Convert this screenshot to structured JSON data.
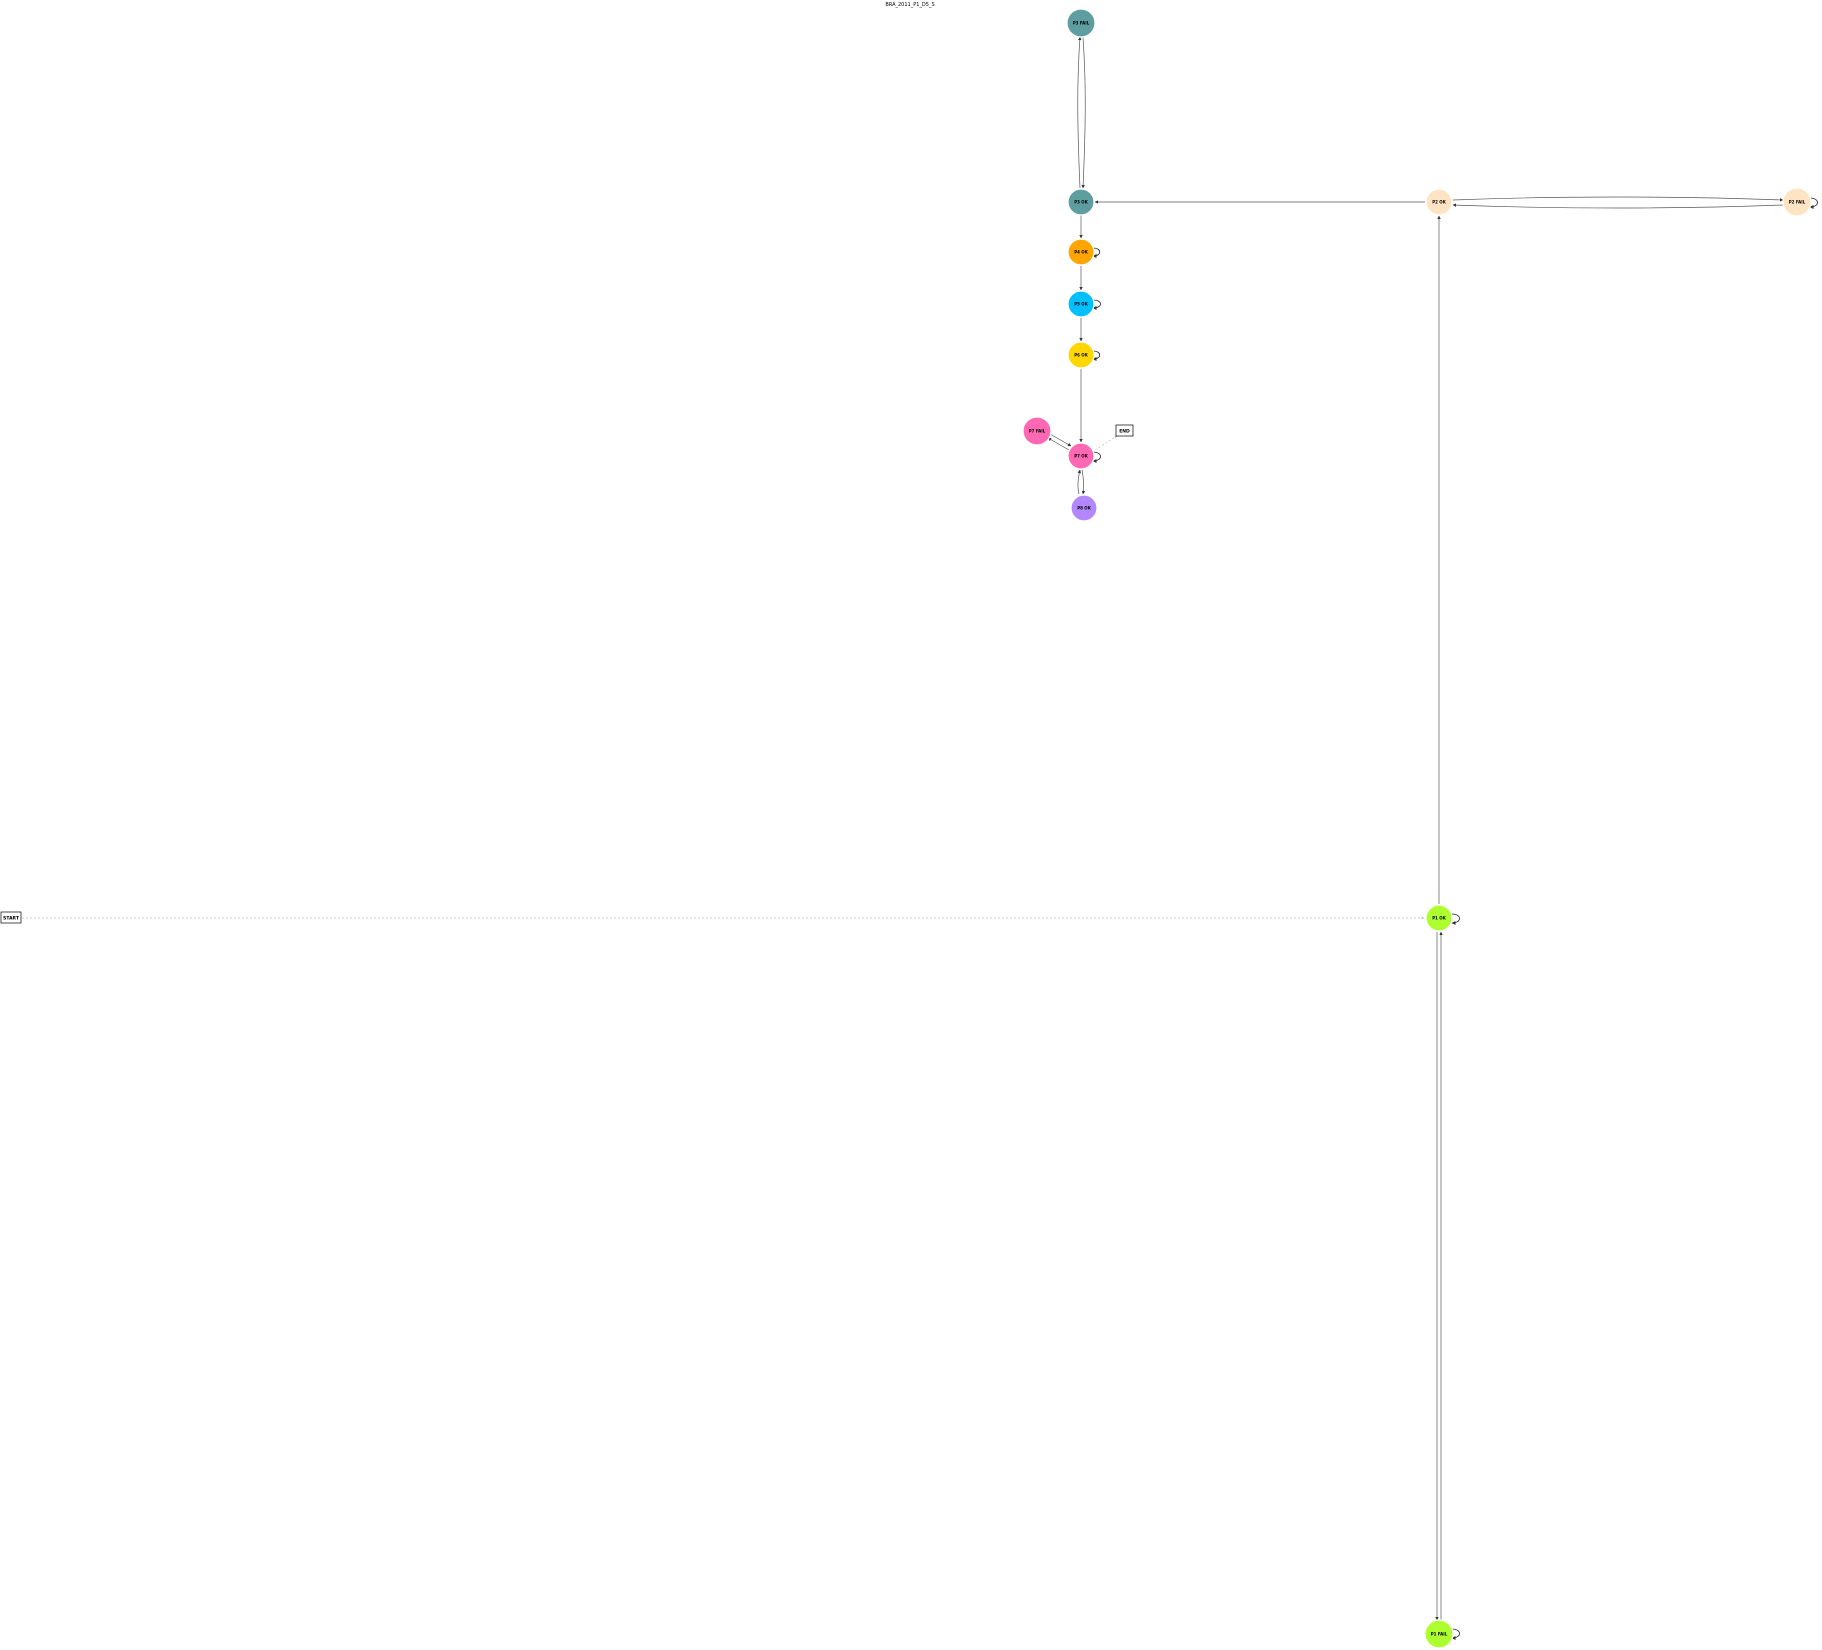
{
  "title": "BRA_2011_P1_D5_S",
  "start_label": "START",
  "end_label": "END",
  "nodes": [
    {
      "id": "p3_fail",
      "label": "P3 FAIL",
      "color": "#5f9ea0"
    },
    {
      "id": "p3_ok",
      "label": "P3 OK",
      "color": "#5f9ea0"
    },
    {
      "id": "p2_ok",
      "label": "P2 OK",
      "color": "#ffe4c4"
    },
    {
      "id": "p2_fail",
      "label": "P2 FAIL",
      "color": "#ffe4c4"
    },
    {
      "id": "p4_ok",
      "label": "P4 OK",
      "color": "#ffa500"
    },
    {
      "id": "p5_ok",
      "label": "P5 OK",
      "color": "#00bfff"
    },
    {
      "id": "p6_ok",
      "label": "P6 OK",
      "color": "#ffd700"
    },
    {
      "id": "p7_fail",
      "label": "P7 FAIL",
      "color": "#ff69b4"
    },
    {
      "id": "p7_ok",
      "label": "P7 OK",
      "color": "#ff69b4"
    },
    {
      "id": "p8_ok",
      "label": "P8 OK",
      "color": "#b388ff"
    },
    {
      "id": "p1_ok",
      "label": "P1 OK",
      "color": "#adff2f"
    },
    {
      "id": "p1_fail",
      "label": "P1 FAIL",
      "color": "#adff2f"
    }
  ]
}
